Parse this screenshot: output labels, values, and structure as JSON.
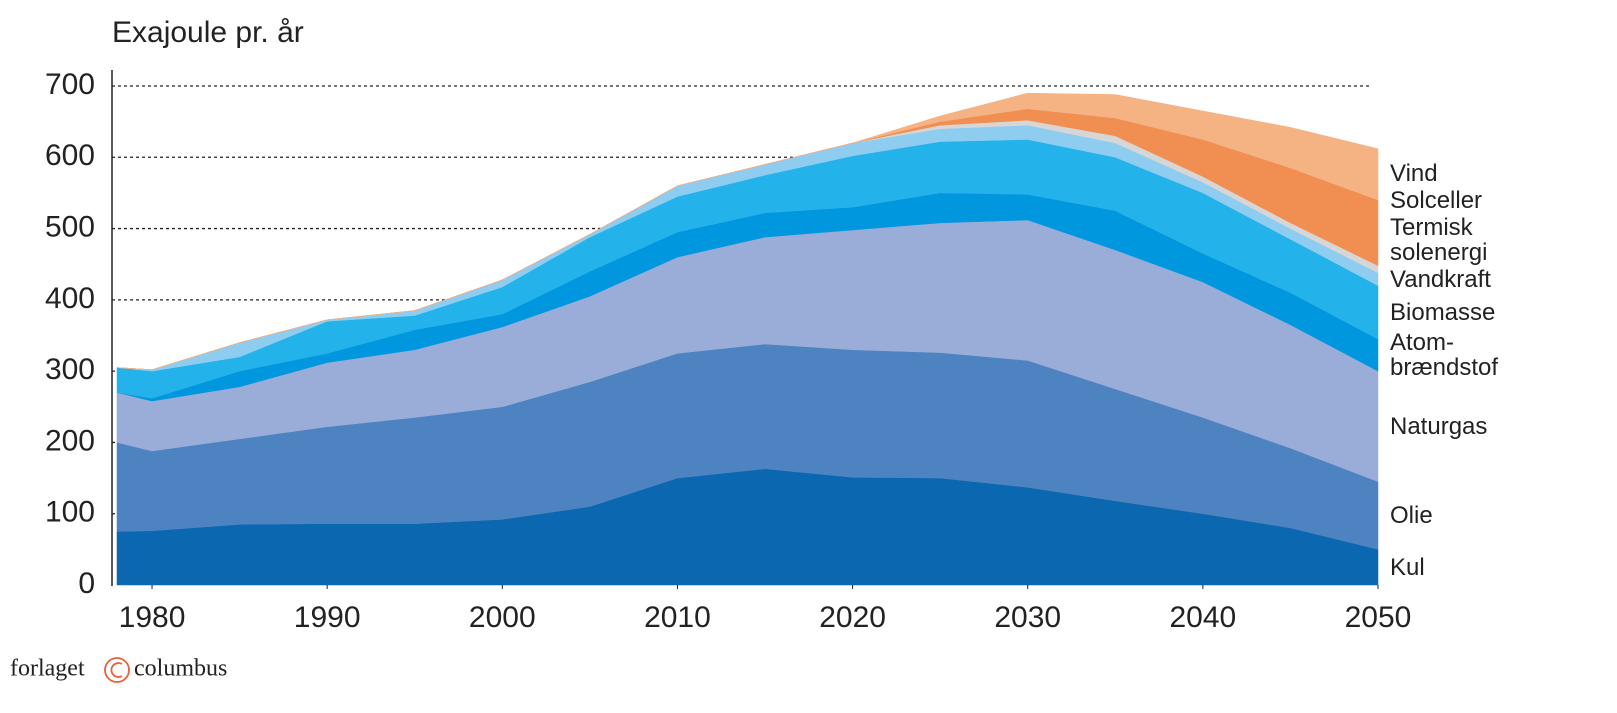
{
  "chart_data": {
    "type": "stacked_area",
    "title": "Exajoule pr. år",
    "x": [
      1978,
      1980,
      1985,
      1990,
      1995,
      2000,
      2005,
      2010,
      2015,
      2020,
      2025,
      2030,
      2035,
      2040,
      2045,
      2050
    ],
    "series": [
      {
        "name": "Kul",
        "color": "#0a67b0",
        "values": [
          75,
          76,
          85,
          86,
          86,
          92,
          110,
          150,
          163,
          151,
          150,
          137,
          118,
          100,
          80,
          50
        ]
      },
      {
        "name": "Olie",
        "color": "#4e83c1",
        "values": [
          125,
          112,
          120,
          136,
          149,
          158,
          175,
          175,
          175,
          179,
          176,
          178,
          157,
          135,
          112,
          95
        ]
      },
      {
        "name": "Naturgas",
        "color": "#99add8",
        "values": [
          70,
          70,
          73,
          90,
          95,
          112,
          120,
          135,
          150,
          168,
          182,
          197,
          195,
          190,
          173,
          155
        ]
      },
      {
        "name": "Atom-brændstof",
        "color": "#0097de",
        "values": [
          0,
          4,
          22,
          13,
          28,
          18,
          35,
          35,
          34,
          32,
          42,
          36,
          55,
          40,
          45,
          45
        ]
      },
      {
        "name": "Biomasse",
        "color": "#24b2ea",
        "values": [
          35,
          38,
          20,
          45,
          20,
          38,
          48,
          50,
          53,
          72,
          72,
          77,
          75,
          85,
          75,
          75
        ]
      },
      {
        "name": "Vandkraft",
        "color": "#8fcdf0",
        "values": [
          0,
          2,
          20,
          2,
          7,
          10,
          4,
          15,
          15,
          18,
          18,
          20,
          20,
          15,
          15,
          18
        ]
      },
      {
        "name": "Termisk solenergi",
        "color": "#d6d6d6",
        "values": [
          0,
          0,
          0,
          0,
          0,
          0,
          0,
          0,
          0,
          0,
          5,
          7,
          10,
          8,
          8,
          10
        ]
      },
      {
        "name": "Solceller",
        "color": "#f18e52",
        "values": [
          0,
          0,
          0,
          0,
          0,
          0,
          0,
          0,
          0,
          0,
          5,
          16,
          25,
          52,
          77,
          92
        ]
      },
      {
        "name": "Vind",
        "color": "#f5b283",
        "values": [
          0,
          0,
          0,
          0,
          0,
          0,
          0,
          0,
          0,
          0,
          8,
          22,
          33,
          40,
          57,
          72
        ]
      }
    ],
    "xlim": [
      1978,
      2050
    ],
    "xticks": [
      1980,
      1990,
      2000,
      2010,
      2020,
      2030,
      2040,
      2050
    ],
    "ylim": [
      0,
      700
    ],
    "yticks": [
      0,
      100,
      200,
      300,
      400,
      500,
      600,
      700
    ],
    "grid": true,
    "source": [
      "forlaget",
      "columbus"
    ]
  }
}
